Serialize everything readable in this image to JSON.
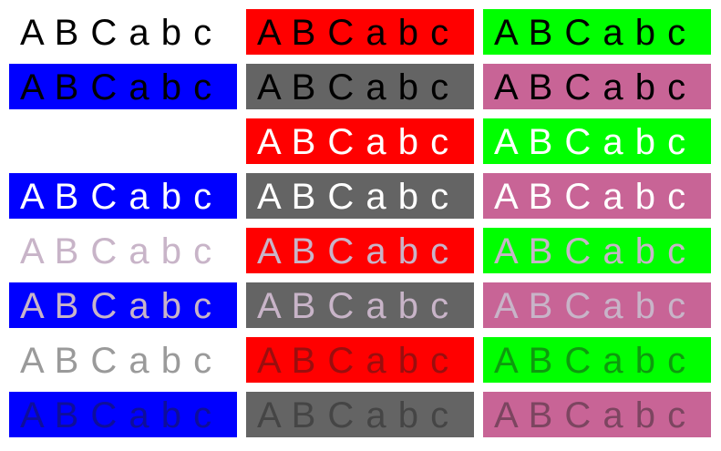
{
  "text": "A B C a b c",
  "backgrounds": [
    [
      "#ffffff",
      "#ff0000",
      "#00ff00"
    ],
    [
      "#0000ff",
      "#646464",
      "#c86496"
    ]
  ],
  "text_colors": [
    "#000000",
    "#ffffff",
    "#c8b4c8",
    "rgba(30,30,30,0.45)"
  ],
  "rows": 8,
  "columns": 3
}
